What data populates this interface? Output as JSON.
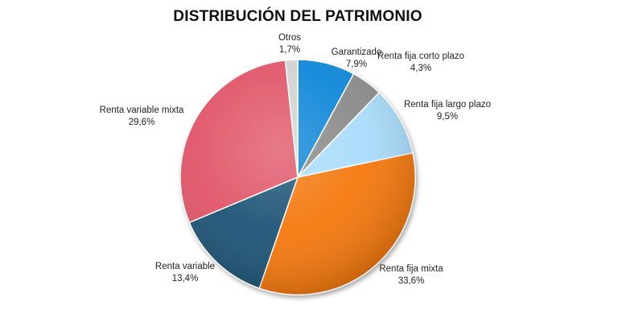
{
  "chart_data": {
    "type": "pie",
    "title": "DISTRIBUCIÓN DEL PATRIMONIO",
    "slices": [
      {
        "label": "Garantizado",
        "value_text": "7,9%",
        "value": 7.9,
        "color": "#0a86d8"
      },
      {
        "label": "Renta fija corto plazo",
        "value_text": "4,3%",
        "value": 4.3,
        "color": "#8a8a8a"
      },
      {
        "label": "Renta fija largo plazo",
        "value_text": "9,5%",
        "value": 9.5,
        "color": "#a9dcfb"
      },
      {
        "label": "Renta fija mixta",
        "value_text": "33,6%",
        "value": 33.6,
        "color": "#f4780f"
      },
      {
        "label": "Renta variable",
        "value_text": "13,4%",
        "value": 13.4,
        "color": "#1f5274"
      },
      {
        "label": "Renta variable mixta",
        "value_text": "29,6%",
        "value": 29.6,
        "color": "#e05468"
      },
      {
        "label": "Otros",
        "value_text": "1,7%",
        "value": 1.7,
        "color": "#d2d2d2"
      }
    ],
    "start_angle_deg": 0,
    "direction": "clockwise"
  }
}
